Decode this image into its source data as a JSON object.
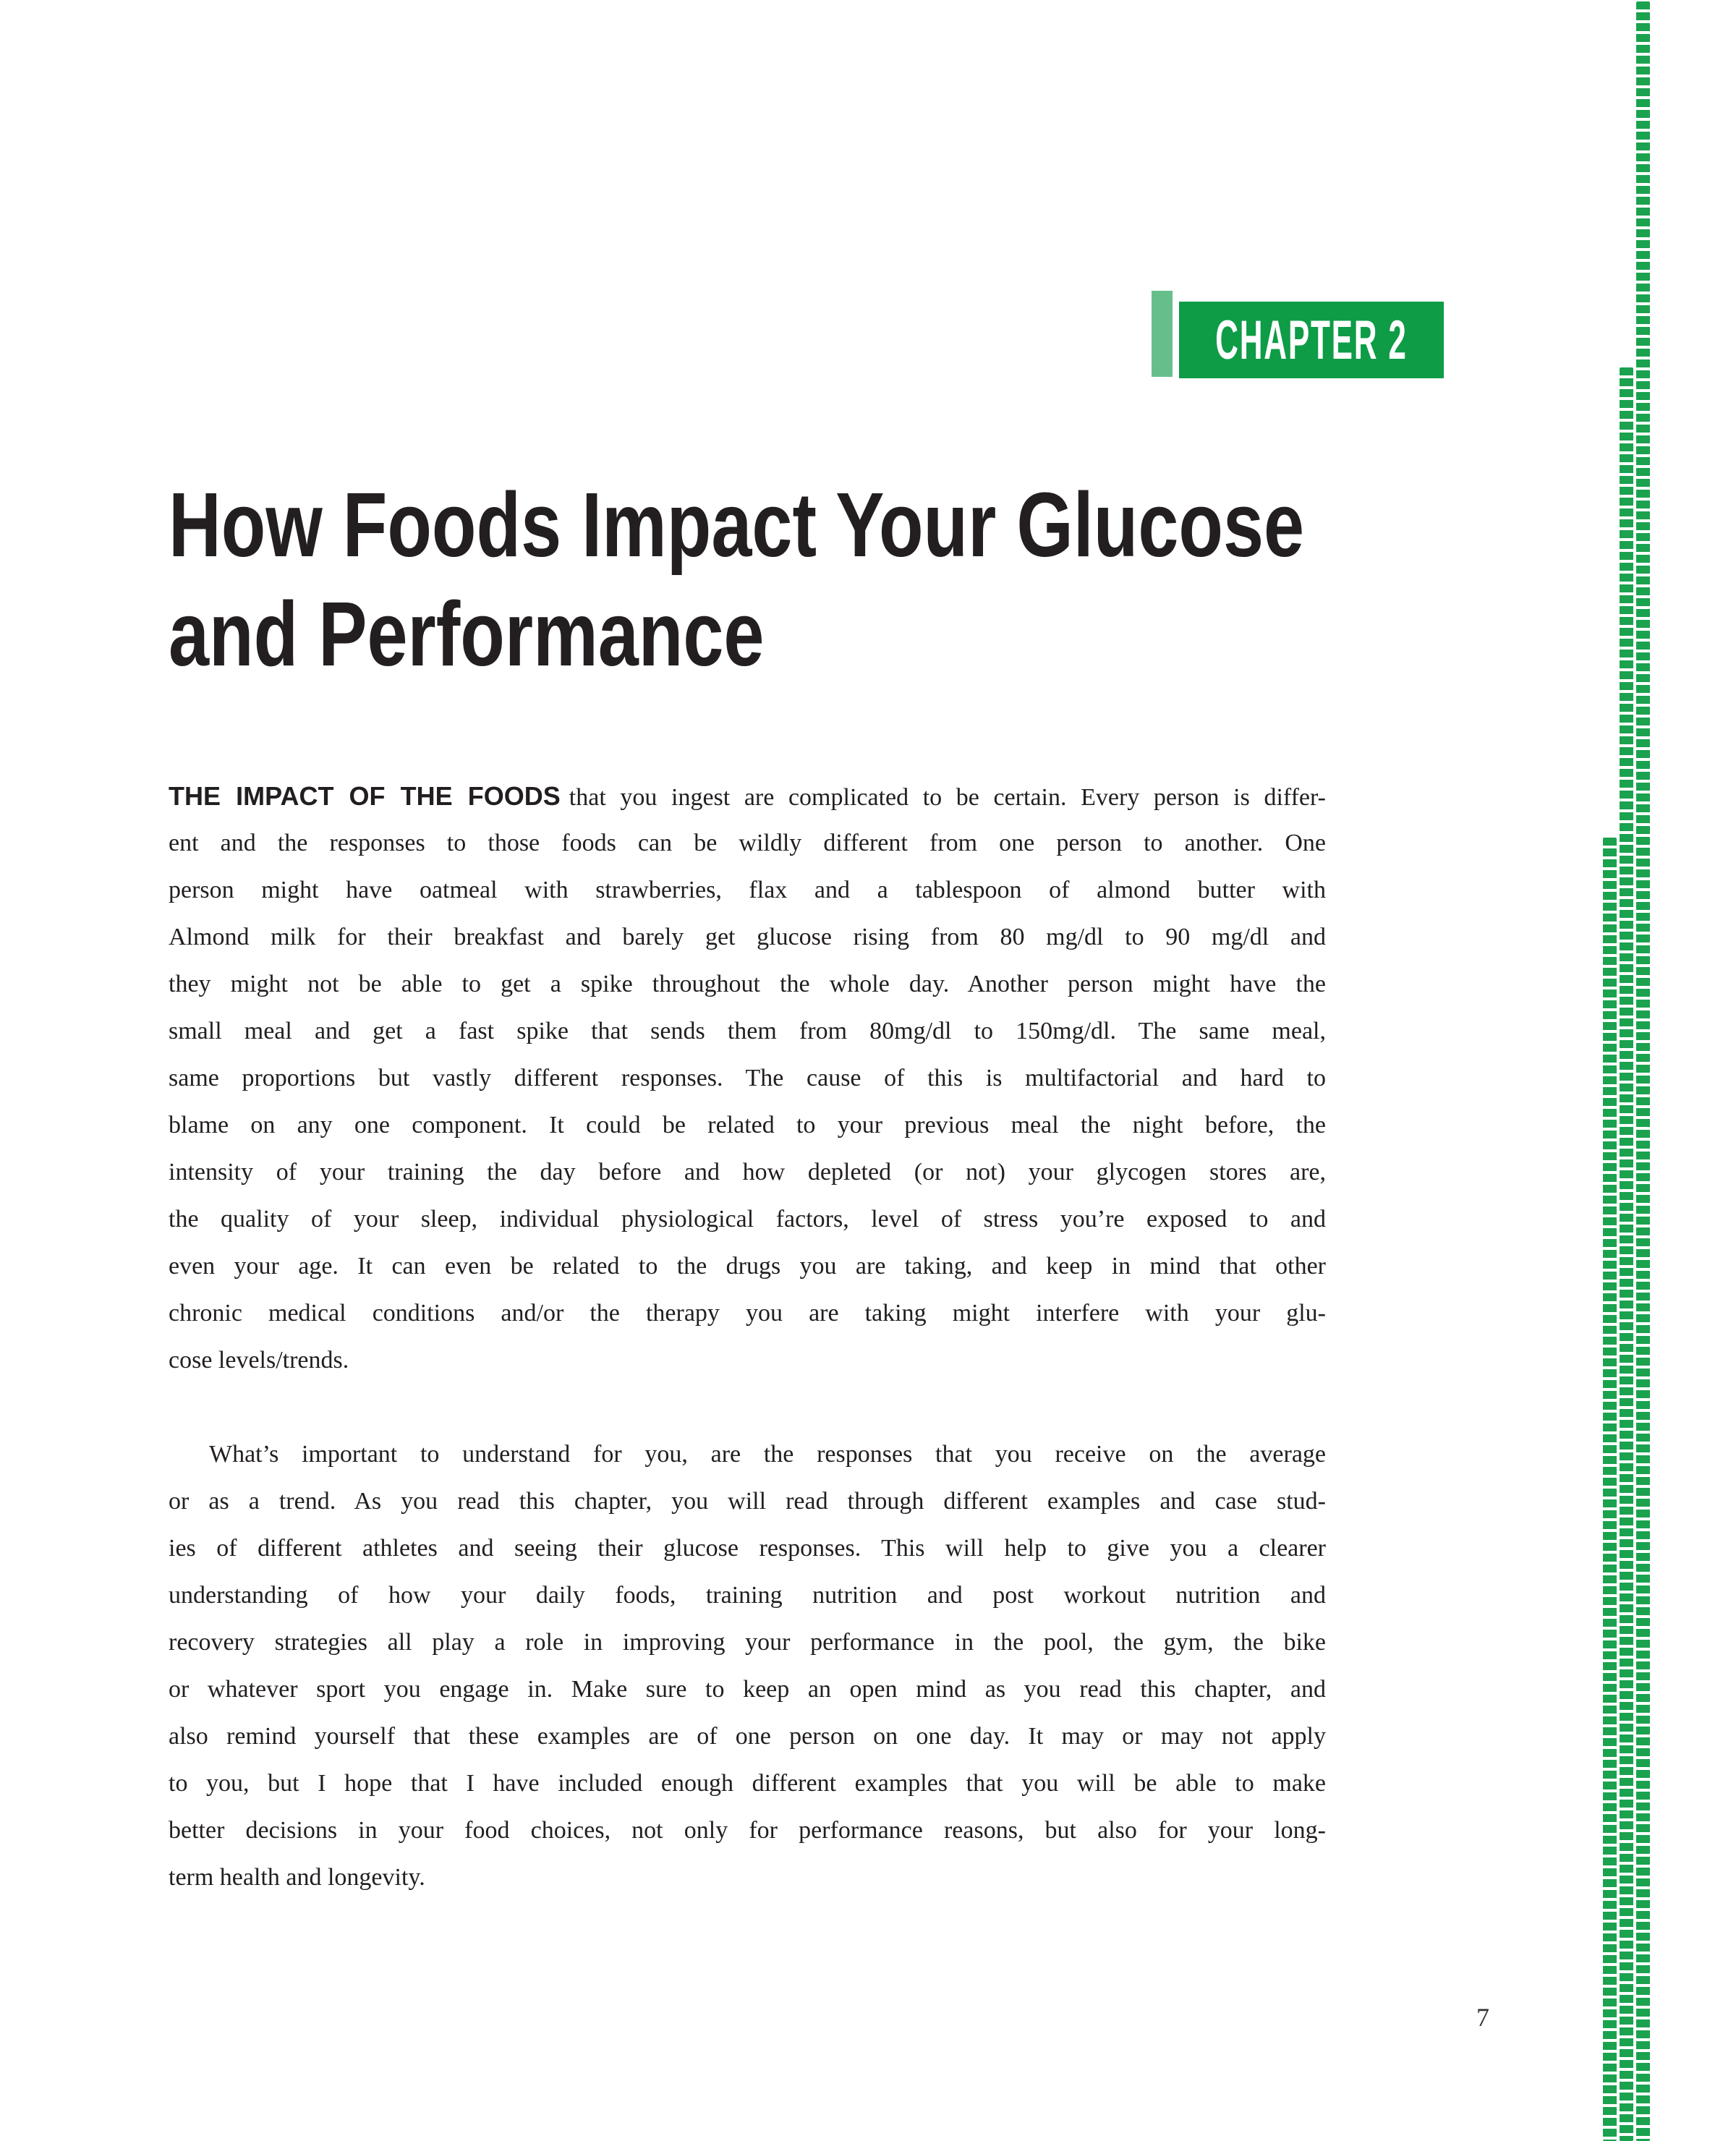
{
  "chapter_badge": {
    "label": "CHAPTER 2",
    "dark_green": "#0e9c47",
    "light_green": "#66bf8b"
  },
  "title": {
    "line1": "How Foods Impact Your Glucose",
    "line2": "and Performance"
  },
  "body": {
    "paragraph1": {
      "lead_in": "THE IMPACT OF THE FOODS",
      "lines": [
        "that you ingest are complicated to be certain. Every person is differ-",
        "ent and the responses to those foods can be wildly different from one person to another. One",
        "person might have oatmeal with strawberries, flax and a tablespoon of almond butter with",
        "Almond milk for their breakfast and barely get glucose rising from 80 mg/dl to 90 mg/dl and",
        "they might not be able to get a spike throughout the whole day. Another person might have the",
        "small meal and get a fast spike that sends them from 80mg/dl to 150mg/dl. The same meal,",
        "same proportions but vastly different responses. The cause of this is multifactorial and hard to",
        "blame on any one component. It could be related to your previous meal the night before, the",
        "intensity of your training the day before and how depleted (or not) your glycogen stores are,",
        "the quality of your sleep, individual physiological factors, level of stress you’re exposed to and",
        "even your age. It can even be related to the drugs you are taking, and keep in mind that other",
        "chronic medical conditions and/or the therapy you are taking might interfere with your glu-",
        "cose levels/trends."
      ]
    },
    "paragraph2": {
      "lines": [
        "What’s important to understand for you, are the responses that you receive on the average",
        "or as a trend. As you read this chapter, you will read through different examples and case stud-",
        "ies of different athletes and seeing their glucose responses. This will help to give you a clearer",
        "understanding of how your daily foods, training nutrition and post workout nutrition and",
        "recovery strategies all play a role in improving your performance in the pool, the gym, the bike",
        "or whatever sport you engage in. Make sure to keep an open mind as you read this chapter, and",
        "also remind yourself that these examples are of one person on one day. It may or may not apply",
        "to you, but I hope that I have included enough different examples that you will be able to make",
        "better decisions in your food choices, not only for performance reasons, but also for your long-",
        "term health and longevity."
      ]
    }
  },
  "page": {
    "number": "7"
  },
  "decoration": {
    "dot_color": "#1aa24e",
    "pattern": "green-dotted-right-edge"
  }
}
